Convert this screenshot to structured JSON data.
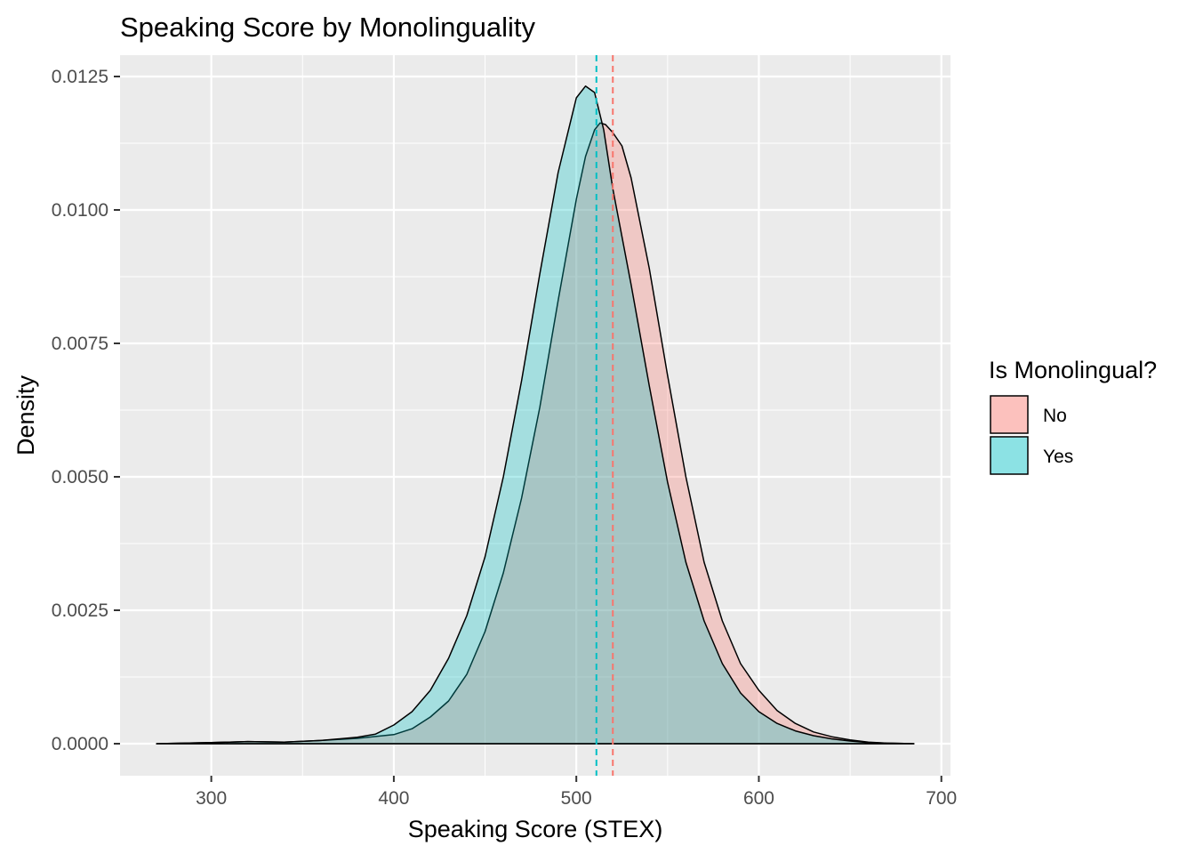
{
  "chart_data": {
    "type": "area",
    "title": "Speaking Score by Monolinguality",
    "xlabel": "Speaking Score (STEX)",
    "ylabel": "Density",
    "xlim": [
      250,
      705
    ],
    "ylim": [
      -0.0006,
      0.0129
    ],
    "x_ticks": [
      300,
      400,
      500,
      600,
      700
    ],
    "x_tick_labels": [
      "300",
      "400",
      "500",
      "600",
      "700"
    ],
    "y_ticks": [
      0,
      0.0025,
      0.005,
      0.0075,
      0.01,
      0.0125
    ],
    "y_tick_labels": [
      "0.0000",
      "0.0025",
      "0.0050",
      "0.0075",
      "0.0100",
      "0.0125"
    ],
    "grid": true,
    "legend": {
      "title": "Is Monolingual?",
      "position": "right",
      "entries": [
        "No",
        "Yes"
      ]
    },
    "series": [
      {
        "name": "No",
        "color": "#F8766D",
        "mean": 520,
        "points": [
          [
            270,
            0
          ],
          [
            300,
            2e-05
          ],
          [
            320,
            4e-05
          ],
          [
            340,
            3e-05
          ],
          [
            360,
            6e-05
          ],
          [
            380,
            0.0001
          ],
          [
            400,
            0.00017
          ],
          [
            410,
            0.00028
          ],
          [
            420,
            0.0005
          ],
          [
            430,
            0.0008
          ],
          [
            440,
            0.0013
          ],
          [
            450,
            0.0021
          ],
          [
            460,
            0.0032
          ],
          [
            470,
            0.0046
          ],
          [
            480,
            0.0063
          ],
          [
            490,
            0.0083
          ],
          [
            500,
            0.0102
          ],
          [
            505,
            0.011
          ],
          [
            510,
            0.0115
          ],
          [
            513,
            0.01163
          ],
          [
            516,
            0.0116
          ],
          [
            520,
            0.01145
          ],
          [
            525,
            0.0112
          ],
          [
            530,
            0.0106
          ],
          [
            540,
            0.0089
          ],
          [
            550,
            0.0069
          ],
          [
            560,
            0.005
          ],
          [
            570,
            0.0034
          ],
          [
            580,
            0.0023
          ],
          [
            590,
            0.0015
          ],
          [
            600,
            0.001
          ],
          [
            610,
            0.00062
          ],
          [
            620,
            0.00038
          ],
          [
            630,
            0.00022
          ],
          [
            640,
            0.00013
          ],
          [
            650,
            7e-05
          ],
          [
            660,
            3e-05
          ],
          [
            670,
            1e-05
          ],
          [
            685,
            0
          ]
        ]
      },
      {
        "name": "Yes",
        "color": "#00BFC4",
        "mean": 511,
        "points": [
          [
            270,
            0
          ],
          [
            300,
            2e-05
          ],
          [
            320,
            4e-05
          ],
          [
            340,
            3e-05
          ],
          [
            360,
            6e-05
          ],
          [
            380,
            0.00012
          ],
          [
            390,
            0.00018
          ],
          [
            400,
            0.00035
          ],
          [
            410,
            0.0006
          ],
          [
            420,
            0.001
          ],
          [
            430,
            0.0016
          ],
          [
            440,
            0.0024
          ],
          [
            450,
            0.0035
          ],
          [
            460,
            0.005
          ],
          [
            470,
            0.0068
          ],
          [
            480,
            0.0088
          ],
          [
            490,
            0.0107
          ],
          [
            500,
            0.0121
          ],
          [
            505,
            0.01232
          ],
          [
            510,
            0.0122
          ],
          [
            515,
            0.0115
          ],
          [
            520,
            0.0104
          ],
          [
            530,
            0.0086
          ],
          [
            540,
            0.0067
          ],
          [
            550,
            0.0049
          ],
          [
            560,
            0.0034
          ],
          [
            570,
            0.0023
          ],
          [
            580,
            0.0015
          ],
          [
            590,
            0.00095
          ],
          [
            600,
            0.0006
          ],
          [
            610,
            0.00038
          ],
          [
            620,
            0.00024
          ],
          [
            630,
            0.00015
          ],
          [
            640,
            9e-05
          ],
          [
            650,
            5e-05
          ],
          [
            660,
            2e-05
          ],
          [
            670,
            1e-05
          ],
          [
            685,
            0
          ]
        ]
      }
    ]
  }
}
